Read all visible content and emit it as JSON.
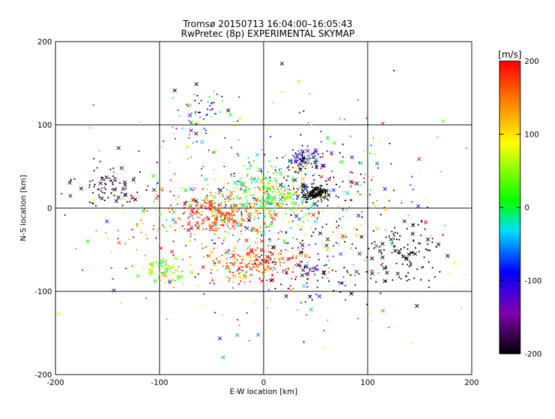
{
  "chart_data": {
    "type": "scatter",
    "title_line1": "Tromsø 20150713 16:04:00–16:05:43",
    "title_line2": "RwPretec (8p) EXPERIMENTAL SKYMAP",
    "xlabel": "E-W location [km]",
    "ylabel": "N-S location [km]",
    "xlim": [
      -200,
      200
    ],
    "ylim": [
      -200,
      200
    ],
    "xticks": [
      -200,
      -100,
      0,
      100,
      200
    ],
    "yticks": [
      -200,
      -100,
      0,
      100,
      200
    ],
    "grid_lines_x": [
      -100,
      0,
      100
    ],
    "grid_lines_y": [
      -100,
      0,
      100
    ],
    "colorbar": {
      "label": "[m/s]",
      "range": [
        -200,
        200
      ],
      "ticks": [
        200,
        100,
        0,
        -100,
        -200
      ],
      "colormap": [
        "#000000",
        "#8000b0",
        "#0000ff",
        "#00e0ff",
        "#00ff00",
        "#ffff00",
        "#ff8000",
        "#ff0000"
      ]
    },
    "marker_types": [
      "dot",
      "cross"
    ],
    "clusters": [
      {
        "cx": -42,
        "cy": -8,
        "sx": 22,
        "sy": 12,
        "n": 200,
        "vel": 180,
        "vsd": 25
      },
      {
        "cx": -15,
        "cy": 10,
        "sx": 28,
        "sy": 15,
        "n": 170,
        "vel": 40,
        "vsd": 60
      },
      {
        "cx": 10,
        "cy": 25,
        "sx": 25,
        "sy": 18,
        "n": 150,
        "vel": 20,
        "vsd": 60
      },
      {
        "cx": 50,
        "cy": 18,
        "sx": 8,
        "sy": 6,
        "n": 120,
        "vel": -200,
        "vsd": 10
      },
      {
        "cx": 38,
        "cy": 55,
        "sx": 10,
        "sy": 8,
        "n": 90,
        "vel": -130,
        "vsd": 70
      },
      {
        "cx": -10,
        "cy": -65,
        "sx": 22,
        "sy": 12,
        "n": 180,
        "vel": 170,
        "vsd": 50
      },
      {
        "cx": -95,
        "cy": -75,
        "sx": 10,
        "sy": 8,
        "n": 70,
        "vel": 60,
        "vsd": 40
      },
      {
        "cx": 135,
        "cy": -55,
        "sx": 20,
        "sy": 20,
        "n": 120,
        "vel": -200,
        "vsd": 5
      },
      {
        "cx": -150,
        "cy": 25,
        "sx": 18,
        "sy": 12,
        "n": 80,
        "vel": -190,
        "vsd": 20
      },
      {
        "cx": 50,
        "cy": -70,
        "sx": 25,
        "sy": 20,
        "n": 100,
        "vel": -170,
        "vsd": 40
      },
      {
        "cx": -60,
        "cy": 110,
        "sx": 15,
        "sy": 15,
        "n": 60,
        "vel": -100,
        "vsd": 80
      },
      {
        "cx": -100,
        "cy": -20,
        "sx": 30,
        "sy": 40,
        "n": 90,
        "vel": 120,
        "vsd": 90
      },
      {
        "cx": 20,
        "cy": -20,
        "sx": 50,
        "sy": 45,
        "n": 200,
        "vel": 0,
        "vsd": 130
      },
      {
        "cx": 0,
        "cy": 0,
        "sx": 90,
        "sy": 75,
        "n": 260,
        "vel": 0,
        "vsd": 150
      },
      {
        "cx": 80,
        "cy": 40,
        "sx": 30,
        "sy": 25,
        "n": 50,
        "vel": -120,
        "vsd": 60
      }
    ]
  }
}
